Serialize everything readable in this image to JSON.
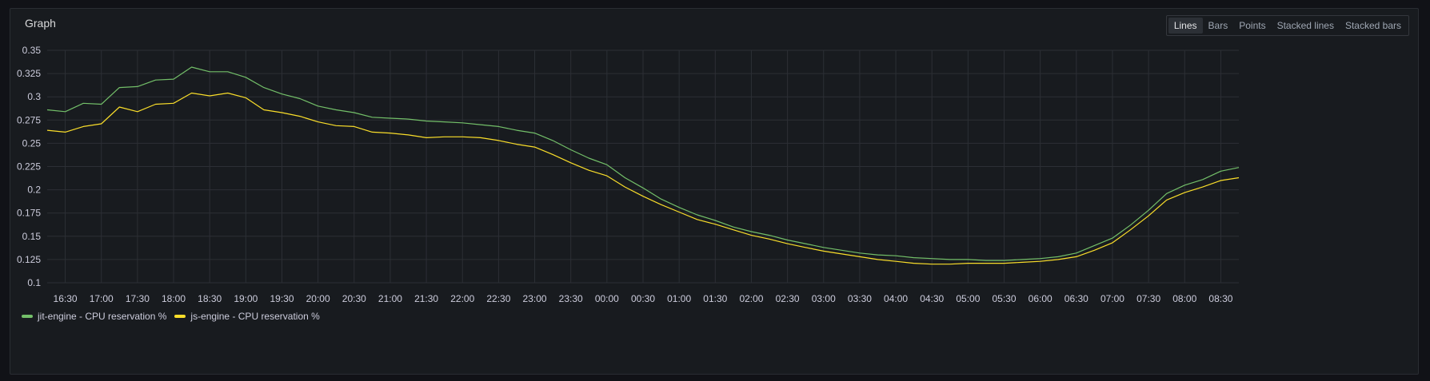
{
  "panel": {
    "title": "Graph",
    "view_modes": [
      "Lines",
      "Bars",
      "Points",
      "Stacked lines",
      "Stacked bars"
    ],
    "active_view_mode": "Lines"
  },
  "colors": {
    "background": "#181b1f",
    "grid": "#2c2f35",
    "series_1": "#73bf69",
    "series_2": "#fade2a"
  },
  "chart_data": {
    "type": "line",
    "title": "",
    "xlabel": "",
    "ylabel": "",
    "ylim": [
      0.1,
      0.35
    ],
    "y_ticks": [
      "0.35",
      "0.325",
      "0.3",
      "0.275",
      "0.25",
      "0.225",
      "0.2",
      "0.175",
      "0.15",
      "0.125",
      "0.1"
    ],
    "x_ticks": [
      "16:30",
      "17:00",
      "17:30",
      "18:00",
      "18:30",
      "19:00",
      "19:30",
      "20:00",
      "20:30",
      "21:00",
      "21:30",
      "22:00",
      "22:30",
      "23:00",
      "23:30",
      "00:00",
      "00:30",
      "01:00",
      "01:30",
      "02:00",
      "02:30",
      "03:00",
      "03:30",
      "04:00",
      "04:30",
      "05:00",
      "05:30",
      "06:00",
      "06:30",
      "07:00",
      "07:30",
      "08:00",
      "08:30"
    ],
    "x": [
      "16:15",
      "16:30",
      "16:45",
      "17:00",
      "17:15",
      "17:30",
      "17:45",
      "18:00",
      "18:15",
      "18:30",
      "18:45",
      "19:00",
      "19:15",
      "19:30",
      "19:45",
      "20:00",
      "20:15",
      "20:30",
      "20:45",
      "21:00",
      "21:15",
      "21:30",
      "21:45",
      "22:00",
      "22:15",
      "22:30",
      "22:45",
      "23:00",
      "23:15",
      "23:30",
      "23:45",
      "00:00",
      "00:15",
      "00:30",
      "00:45",
      "01:00",
      "01:15",
      "01:30",
      "01:45",
      "02:00",
      "02:15",
      "02:30",
      "02:45",
      "03:00",
      "03:15",
      "03:30",
      "03:45",
      "04:00",
      "04:15",
      "04:30",
      "04:45",
      "05:00",
      "05:15",
      "05:30",
      "05:45",
      "06:00",
      "06:15",
      "06:30",
      "06:45",
      "07:00",
      "07:15",
      "07:30",
      "07:45",
      "08:00",
      "08:15",
      "08:30",
      "08:45"
    ],
    "series": [
      {
        "name": "jit-engine - CPU reservation %",
        "color": "#73bf69",
        "values": [
          0.286,
          0.284,
          0.293,
          0.292,
          0.31,
          0.311,
          0.318,
          0.319,
          0.332,
          0.327,
          0.327,
          0.321,
          0.31,
          0.303,
          0.298,
          0.29,
          0.286,
          0.283,
          0.278,
          0.277,
          0.276,
          0.274,
          0.273,
          0.272,
          0.27,
          0.268,
          0.264,
          0.261,
          0.253,
          0.243,
          0.234,
          0.227,
          0.213,
          0.202,
          0.19,
          0.181,
          0.173,
          0.167,
          0.16,
          0.155,
          0.151,
          0.146,
          0.142,
          0.138,
          0.135,
          0.132,
          0.13,
          0.129,
          0.127,
          0.126,
          0.125,
          0.125,
          0.124,
          0.124,
          0.125,
          0.126,
          0.128,
          0.132,
          0.14,
          0.148,
          0.162,
          0.178,
          0.196,
          0.205,
          0.211,
          0.22,
          0.224
        ]
      },
      {
        "name": "js-engine - CPU reservation %",
        "color": "#fade2a",
        "values": [
          0.264,
          0.262,
          0.268,
          0.271,
          0.289,
          0.284,
          0.292,
          0.293,
          0.304,
          0.301,
          0.304,
          0.299,
          0.286,
          0.283,
          0.279,
          0.273,
          0.269,
          0.268,
          0.262,
          0.261,
          0.259,
          0.256,
          0.257,
          0.257,
          0.256,
          0.253,
          0.249,
          0.246,
          0.238,
          0.229,
          0.221,
          0.215,
          0.203,
          0.193,
          0.184,
          0.176,
          0.168,
          0.163,
          0.157,
          0.151,
          0.147,
          0.142,
          0.138,
          0.134,
          0.131,
          0.128,
          0.125,
          0.123,
          0.121,
          0.12,
          0.12,
          0.121,
          0.121,
          0.121,
          0.122,
          0.123,
          0.125,
          0.128,
          0.135,
          0.143,
          0.157,
          0.172,
          0.189,
          0.197,
          0.203,
          0.21,
          0.213
        ]
      }
    ],
    "legend_position": "bottom-left",
    "grid": true
  }
}
